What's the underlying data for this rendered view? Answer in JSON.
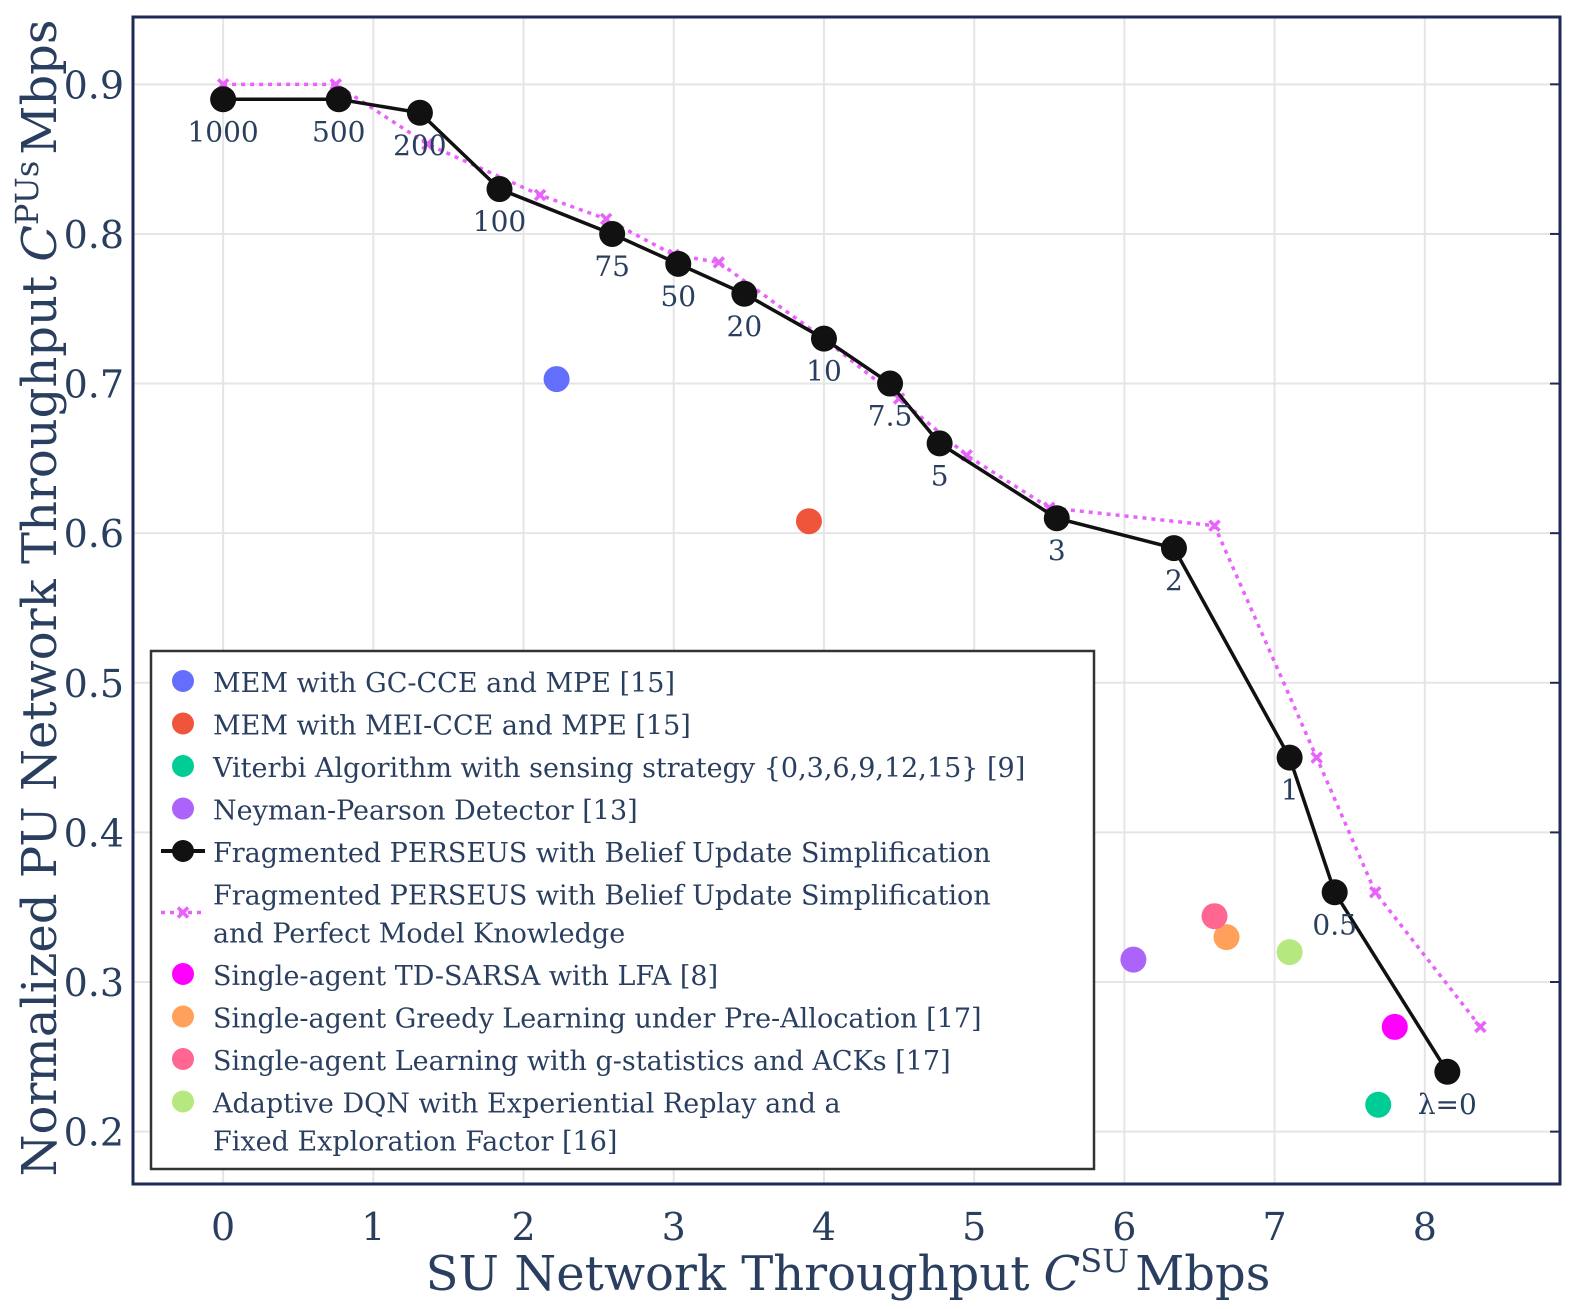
{
  "chart_data": {
    "type": "scatter",
    "xlabel": "SU Network Throughput",
    "xlabel_symbol": "C",
    "xlabel_sup": "SU",
    "xlabel_unit": "Mbps",
    "ylabel": "Normalized PU Network Throughput",
    "ylabel_symbol": "C",
    "ylabel_sup": "PUs",
    "ylabel_unit": "Mbps",
    "xlim": [
      -0.6,
      8.9
    ],
    "ylim": [
      0.165,
      0.945
    ],
    "x_ticks": [
      "0",
      "1",
      "2",
      "3",
      "4",
      "5",
      "6",
      "7",
      "8"
    ],
    "y_ticks": [
      "0.2",
      "0.3",
      "0.4",
      "0.5",
      "0.6",
      "0.7",
      "0.8",
      "0.9"
    ],
    "grid": true,
    "legend_position": "bottom-left",
    "series": [
      {
        "name": "MEM with GC-CCE and MPE [15]",
        "mode": "marker",
        "color": "#636efa",
        "points": [
          [
            2.22,
            0.703
          ]
        ]
      },
      {
        "name": "MEM with MEI-CCE and MPE [15]",
        "mode": "marker",
        "color": "#ef553b",
        "points": [
          [
            3.9,
            0.608
          ]
        ]
      },
      {
        "name": "Viterbi Algorithm with sensing strategy {0,3,6,9,12,15} [9]",
        "mode": "marker",
        "color": "#00cc96",
        "points": [
          [
            7.69,
            0.218
          ]
        ]
      },
      {
        "name": "Neyman-Pearson Detector [13]",
        "mode": "marker",
        "color": "#ab63fa",
        "points": [
          [
            6.06,
            0.315
          ]
        ]
      },
      {
        "name": "Fragmented PERSEUS with Belief Update Simplification",
        "mode": "line+marker",
        "color": "#111111",
        "points": [
          [
            0,
            0.89
          ],
          [
            0.77,
            0.89
          ],
          [
            1.31,
            0.881
          ],
          [
            1.84,
            0.83
          ],
          [
            2.59,
            0.8
          ],
          [
            3.03,
            0.78
          ],
          [
            3.47,
            0.76
          ],
          [
            4.0,
            0.73
          ],
          [
            4.44,
            0.7
          ],
          [
            4.77,
            0.66
          ],
          [
            5.55,
            0.61
          ],
          [
            6.33,
            0.59
          ],
          [
            7.1,
            0.45
          ],
          [
            7.4,
            0.36
          ],
          [
            8.15,
            0.24
          ]
        ],
        "point_labels": [
          "1000",
          "500",
          "200",
          "100",
          "75",
          "50",
          "20",
          "10",
          "7.5",
          "5",
          "3",
          "2",
          "1",
          "0.5",
          "λ=0"
        ]
      },
      {
        "name": "Fragmented PERSEUS with Belief Update Simplification and Perfect Model Knowledge",
        "name_lines": [
          "Fragmented PERSEUS with Belief Update Simplification",
          "and Perfect Model Knowledge"
        ],
        "mode": "dotted-line+marker",
        "color": "#e763fa",
        "points": [
          [
            0,
            0.9
          ],
          [
            0.75,
            0.9
          ],
          [
            1.36,
            0.86
          ],
          [
            2.11,
            0.826
          ],
          [
            2.55,
            0.81
          ],
          [
            3.0,
            0.786
          ],
          [
            3.3,
            0.781
          ],
          [
            4.0,
            0.73
          ],
          [
            4.5,
            0.69
          ],
          [
            4.95,
            0.652
          ],
          [
            5.5,
            0.617
          ],
          [
            6.6,
            0.605
          ],
          [
            7.28,
            0.45
          ],
          [
            7.67,
            0.36
          ],
          [
            8.37,
            0.27
          ]
        ]
      },
      {
        "name": "Single-agent TD-SARSA with LFA [8]",
        "mode": "marker",
        "color": "#ff00ff",
        "points": [
          [
            7.8,
            0.27
          ]
        ]
      },
      {
        "name": "Single-agent Greedy Learning under Pre-Allocation [17]",
        "mode": "marker",
        "color": "#ffa15a",
        "points": [
          [
            6.68,
            0.33
          ]
        ]
      },
      {
        "name": "Single-agent Learning with g-statistics and ACKs [17]",
        "mode": "marker",
        "color": "#ff6692",
        "points": [
          [
            6.6,
            0.344
          ]
        ]
      },
      {
        "name": "Adaptive DQN with Experiential Replay and a Fixed Exploration Factor [16]",
        "name_lines": [
          "Adaptive DQN with Experiential Replay and a",
          "Fixed Exploration Factor [16]"
        ],
        "mode": "marker",
        "color": "#b6e880",
        "points": [
          [
            7.1,
            0.32
          ]
        ]
      }
    ]
  }
}
